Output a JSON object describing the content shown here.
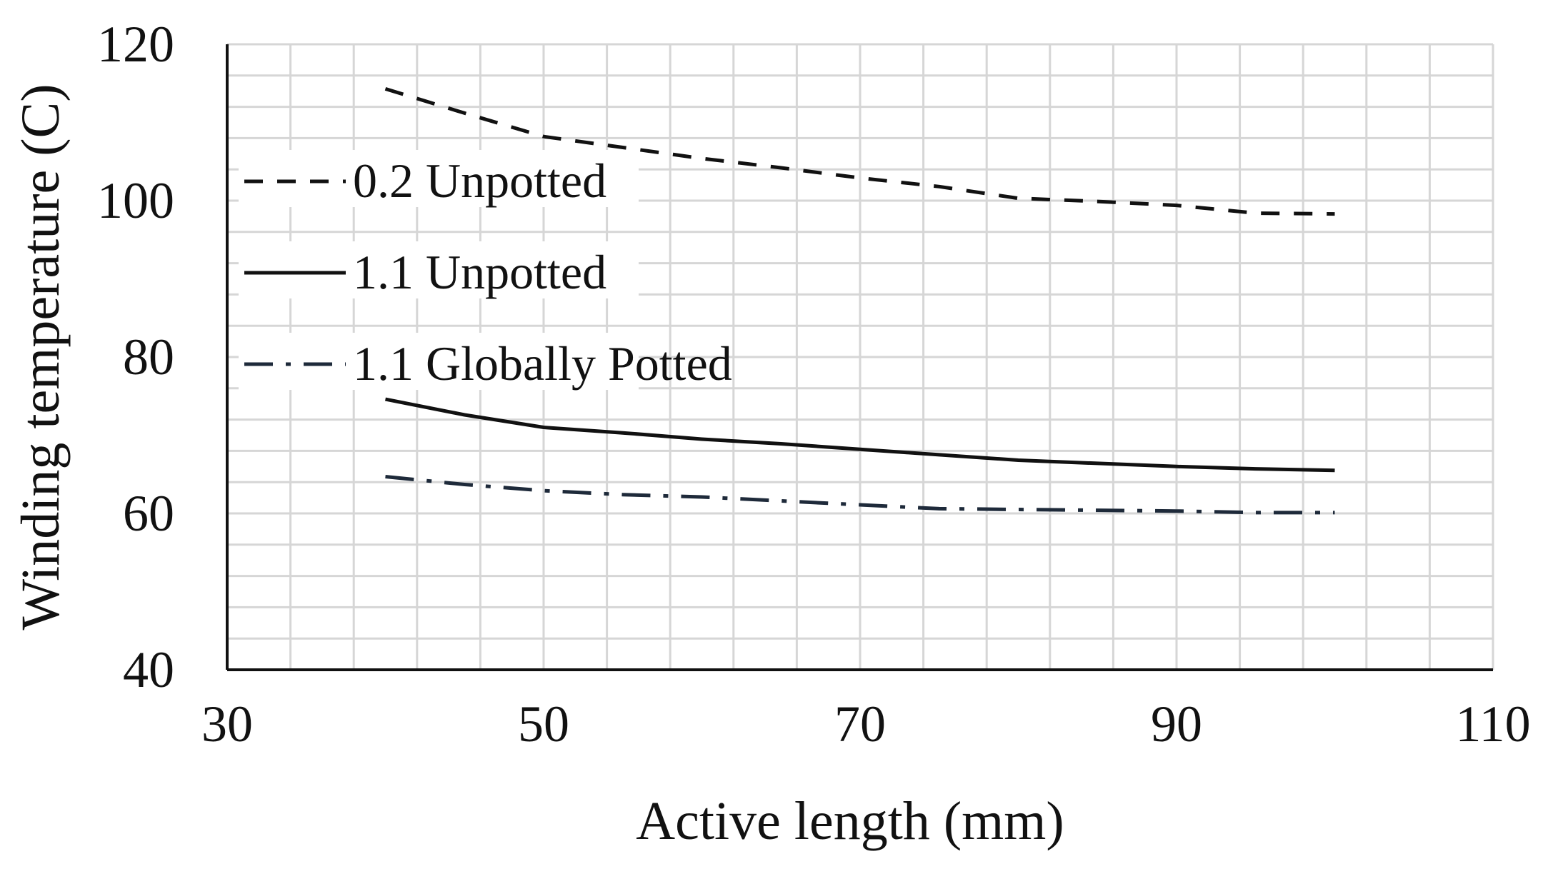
{
  "chart_data": {
    "type": "line",
    "title": "",
    "xlabel": "Active length (mm)",
    "ylabel": "Winding temperature (C)",
    "xlim": [
      30,
      110
    ],
    "ylim": [
      40,
      120
    ],
    "x_ticks": [
      "30",
      "50",
      "70",
      "90",
      "110"
    ],
    "y_ticks": [
      "40",
      "60",
      "80",
      "100",
      "120"
    ],
    "x_tick_values": [
      30,
      50,
      70,
      90,
      110
    ],
    "y_tick_values": [
      40,
      60,
      80,
      100,
      120
    ],
    "x_minor_step": 4,
    "y_minor_step": 4,
    "grid": true,
    "legend_position": "upper-left",
    "series": [
      {
        "name": "0.2 Unpotted",
        "style": "dashed",
        "x": [
          40,
          45,
          50,
          55,
          60,
          65,
          70,
          75,
          80,
          85,
          90,
          95,
          100
        ],
        "y": [
          114.3,
          111.2,
          108.2,
          106.8,
          105.4,
          104.2,
          102.9,
          101.8,
          100.3,
          99.9,
          99.4,
          98.4,
          98.3
        ]
      },
      {
        "name": "1.1 Unpotted",
        "style": "solid",
        "x": [
          40,
          45,
          50,
          55,
          60,
          65,
          70,
          75,
          80,
          85,
          90,
          95,
          100
        ],
        "y": [
          74.6,
          72.6,
          71.0,
          70.3,
          69.5,
          68.9,
          68.2,
          67.5,
          66.8,
          66.4,
          66.0,
          65.7,
          65.5
        ]
      },
      {
        "name": "1.1 Globally Potted",
        "style": "dashdot",
        "x": [
          40,
          45,
          50,
          55,
          60,
          65,
          70,
          75,
          80,
          85,
          90,
          95,
          100
        ],
        "y": [
          64.7,
          63.7,
          62.9,
          62.4,
          62.1,
          61.6,
          61.1,
          60.6,
          60.5,
          60.4,
          60.3,
          60.1,
          60.1
        ]
      }
    ]
  }
}
